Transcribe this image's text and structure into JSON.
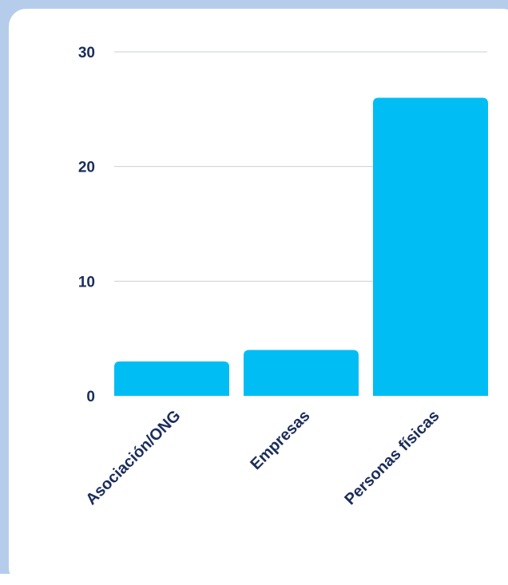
{
  "chart_data": {
    "type": "bar",
    "categories": [
      "Asociación/ONG",
      "Empresas",
      "Personas físicas"
    ],
    "values": [
      3,
      4,
      26
    ],
    "ylim": [
      0,
      30
    ],
    "yticks": [
      "0",
      "10",
      "20",
      "30"
    ],
    "grid": true,
    "title": "",
    "xlabel": "",
    "ylabel": ""
  },
  "colors": {
    "background": "#b5cdea",
    "card": "#ffffff",
    "bar": "#00bdf4",
    "text": "#1a2d5a",
    "grid": "#c8cfe0"
  }
}
